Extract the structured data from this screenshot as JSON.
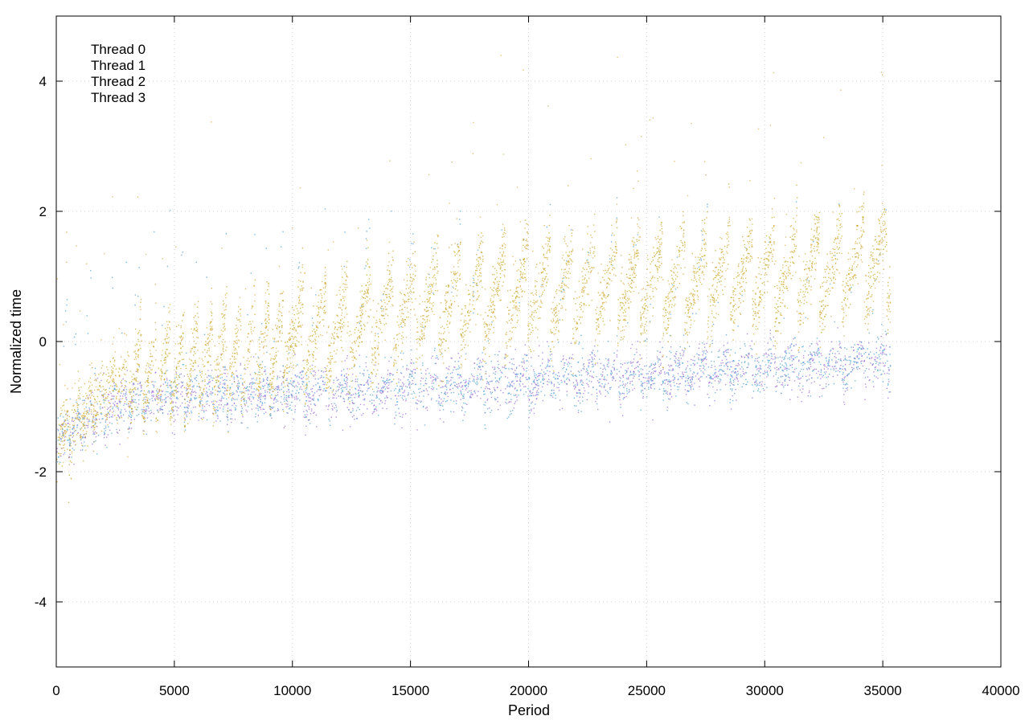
{
  "chart_data": {
    "type": "scatter",
    "title": "",
    "xlabel": "Period",
    "ylabel": "Normalized time",
    "xlim": [
      0,
      40000
    ],
    "ylim": [
      -5,
      5
    ],
    "xticks": [
      0,
      5000,
      10000,
      15000,
      20000,
      25000,
      30000,
      35000,
      40000
    ],
    "yticks": [
      -4,
      -2,
      0,
      2,
      4
    ],
    "grid": true,
    "legend_position": "top-left",
    "x_data_max": 35300,
    "series": [
      {
        "name": "Thread 0",
        "color": "#9b6fd6",
        "pattern": "lower-band"
      },
      {
        "name": "Thread 1",
        "color": "#4fa3d1",
        "pattern": "lower-band-with-spikes"
      },
      {
        "name": "Thread 2",
        "color": "#c8a82a",
        "pattern": "upper-band"
      },
      {
        "name": "Thread 3",
        "color": "#d8b04a",
        "pattern": "upper-band-outliers"
      }
    ],
    "approx_trend": [
      {
        "x": 0,
        "lower": -1.5,
        "upper": -1.5
      },
      {
        "x": 2500,
        "lower": -1.0,
        "upper": -0.6
      },
      {
        "x": 5000,
        "lower": -0.8,
        "upper": -0.4
      },
      {
        "x": 10000,
        "lower": -0.8,
        "upper": 0.0
      },
      {
        "x": 15000,
        "lower": -0.7,
        "upper": 0.5
      },
      {
        "x": 20000,
        "lower": -0.6,
        "upper": 0.8
      },
      {
        "x": 25000,
        "lower": -0.5,
        "upper": 0.9
      },
      {
        "x": 30000,
        "lower": -0.4,
        "upper": 1.0
      },
      {
        "x": 35000,
        "lower": -0.3,
        "upper": 1.2
      }
    ]
  }
}
